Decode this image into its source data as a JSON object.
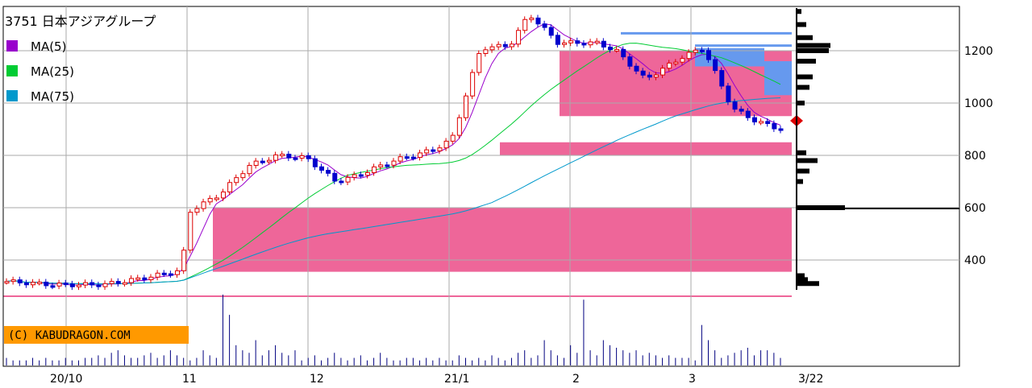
{
  "chart_data": {
    "type": "candlestick",
    "title": "3751 日本アジアグループ",
    "legend": [
      {
        "name": "MA(5)",
        "color": "#9900cc"
      },
      {
        "name": "MA(25)",
        "color": "#00cc33"
      },
      {
        "name": "MA(75)",
        "color": "#0099cc"
      }
    ],
    "watermark": "(C) KABUDRAGON.COM",
    "x_tick_labels": [
      "20/10",
      "11",
      "12",
      "21/1",
      "2",
      "3",
      "3/22"
    ],
    "y_tick_labels": [
      "400",
      "600",
      "800",
      "1000",
      "1200"
    ],
    "y_ticks": [
      400,
      600,
      800,
      1000,
      1200
    ],
    "ylim": [
      160,
      1390
    ],
    "last_price": 920,
    "colors": {
      "up": "#dd0000",
      "down": "#0000cc",
      "zone": "#ee6699",
      "zone_blue": "#6699ee",
      "volume": "#000080"
    },
    "zones_pink": [
      {
        "from": 355,
        "to": 600
      },
      {
        "from": 800,
        "to": 850
      },
      {
        "from": 950,
        "to": 1200
      }
    ],
    "zones_blue": [
      {
        "from": 1030,
        "to": 1160
      },
      {
        "from": 1140,
        "to": 1210
      }
    ],
    "lines_blue": [
      1265,
      1218
    ],
    "line_pink": 260,
    "volume_profile": [
      {
        "price": 310,
        "len": 28
      },
      {
        "price": 325,
        "len": 14
      },
      {
        "price": 340,
        "len": 10
      },
      {
        "price": 600,
        "len": 60
      },
      {
        "price": 700,
        "len": 8
      },
      {
        "price": 740,
        "len": 16
      },
      {
        "price": 780,
        "len": 26
      },
      {
        "price": 810,
        "len": 12
      },
      {
        "price": 1000,
        "len": 10
      },
      {
        "price": 1060,
        "len": 16
      },
      {
        "price": 1100,
        "len": 20
      },
      {
        "price": 1160,
        "len": 24
      },
      {
        "price": 1200,
        "len": 40
      },
      {
        "price": 1220,
        "len": 42
      },
      {
        "price": 1250,
        "len": 20
      },
      {
        "price": 1300,
        "len": 12
      },
      {
        "price": 1350,
        "len": 6
      }
    ],
    "volume": [
      3,
      2,
      2,
      2,
      3,
      2,
      3,
      2,
      2,
      3,
      2,
      2,
      3,
      3,
      4,
      3,
      5,
      6,
      4,
      3,
      3,
      4,
      5,
      3,
      4,
      6,
      4,
      3,
      2,
      3,
      6,
      4,
      3,
      28,
      20,
      8,
      6,
      5,
      10,
      4,
      6,
      8,
      5,
      4,
      6,
      2,
      3,
      4,
      2,
      3,
      5,
      3,
      2,
      3,
      4,
      2,
      3,
      5,
      3,
      2,
      2,
      3,
      3,
      2,
      3,
      2,
      3,
      2,
      2,
      4,
      3,
      2,
      3,
      2,
      4,
      3,
      2,
      3,
      5,
      6,
      3,
      4,
      10,
      6,
      4,
      3,
      8,
      5,
      26,
      6,
      4,
      10,
      8,
      7,
      6,
      5,
      6,
      4,
      5,
      4,
      3,
      4,
      3,
      3,
      3,
      2,
      16,
      10,
      6,
      3,
      4,
      5,
      6,
      7,
      4,
      6,
      6,
      5,
      3
    ]
  }
}
